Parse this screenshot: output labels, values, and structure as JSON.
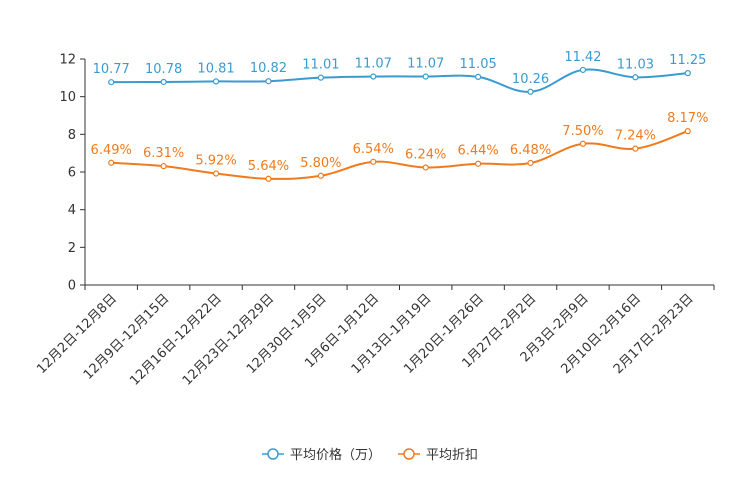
{
  "chart_data": {
    "type": "line",
    "categories": [
      "12月2日-12月8日",
      "12月9日-12月15日",
      "12月16日-12月22日",
      "12月23日-12月29日",
      "12月30日-1月5日",
      "1月6日-1月12日",
      "1月13日-1月19日",
      "1月20日-1月26日",
      "1月27日-2月2日",
      "2月3日-2月9日",
      "2月10日-2月16日",
      "2月17日-2月23日"
    ],
    "ylim": [
      0,
      12
    ],
    "yticks": [
      "0",
      "2",
      "4",
      "6",
      "8",
      "10",
      "12"
    ],
    "series": [
      {
        "name": "平均价格（万）",
        "color": "#3a9bd1",
        "values": [
          10.77,
          10.78,
          10.81,
          10.82,
          11.01,
          11.07,
          11.07,
          11.05,
          10.26,
          11.42,
          11.03,
          11.25
        ],
        "labels": [
          "10.77",
          "10.78",
          "10.81",
          "10.82",
          "11.01",
          "11.07",
          "11.07",
          "11.05",
          "10.26",
          "11.42",
          "11.03",
          "11.25"
        ]
      },
      {
        "name": "平均折扣",
        "color": "#f07b1e",
        "values": [
          6.49,
          6.31,
          5.92,
          5.64,
          5.8,
          6.54,
          6.24,
          6.44,
          6.48,
          7.5,
          7.24,
          8.17
        ],
        "labels": [
          "6.49%",
          "6.31%",
          "5.92%",
          "5.64%",
          "5.80%",
          "6.54%",
          "6.24%",
          "6.44%",
          "6.48%",
          "7.50%",
          "7.24%",
          "8.17%"
        ]
      }
    ]
  }
}
